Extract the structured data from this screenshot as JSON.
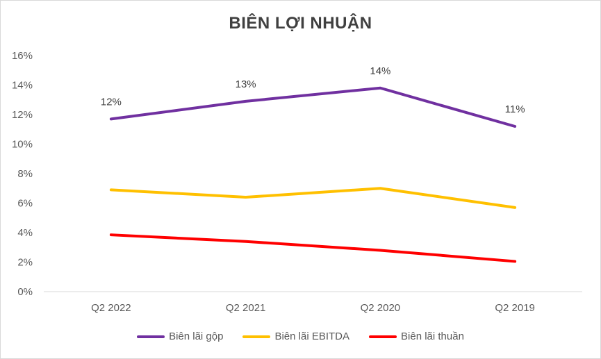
{
  "chart_data": {
    "type": "line",
    "title": "BIÊN LỢI NHUẬN",
    "categories": [
      "Q2 2022",
      "Q2 2021",
      "Q2 2020",
      "Q2 2019"
    ],
    "ylim": [
      0,
      16
    ],
    "yticks": [
      0,
      2,
      4,
      6,
      8,
      10,
      12,
      14,
      16
    ],
    "ytick_labels": [
      "0%",
      "2%",
      "4%",
      "6%",
      "8%",
      "10%",
      "12%",
      "14%",
      "16%"
    ],
    "grid": false,
    "legend_position": "bottom",
    "series": [
      {
        "name": "Biên lãi gộp",
        "color": "#7030a0",
        "values": [
          11.7,
          12.9,
          13.8,
          11.2
        ],
        "labels": [
          "12%",
          "13%",
          "14%",
          "11%"
        ]
      },
      {
        "name": "Biên lãi EBITDA",
        "color": "#ffc000",
        "values": [
          6.9,
          6.4,
          7.0,
          5.7
        ]
      },
      {
        "name": "Biên lãi thuần",
        "color": "#ff0000",
        "values": [
          3.85,
          3.4,
          2.8,
          2.05
        ]
      }
    ]
  }
}
